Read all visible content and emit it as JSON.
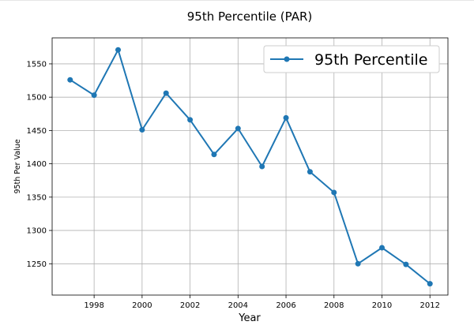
{
  "chart_data": {
    "type": "line",
    "title": "95th Percentile (PAR)",
    "xlabel": "Year",
    "ylabel": "95th Per Value",
    "x": [
      1997,
      1998,
      1999,
      2000,
      2001,
      2002,
      2003,
      2004,
      2005,
      2006,
      2007,
      2008,
      2009,
      2010,
      2011,
      2012
    ],
    "series": [
      {
        "name": "95th Percentile",
        "color": "#1f77b4",
        "marker": "circle",
        "values": [
          1526,
          1503,
          1571,
          1451,
          1506,
          1466,
          1414,
          1453,
          1396,
          1469,
          1388,
          1357,
          1250,
          1274,
          1249,
          1220
        ]
      }
    ],
    "xticks": [
      1998,
      2000,
      2002,
      2004,
      2006,
      2008,
      2010,
      2012
    ],
    "yticks": [
      1250,
      1300,
      1350,
      1400,
      1450,
      1500,
      1550
    ],
    "xlim": [
      1996.25,
      2012.75
    ],
    "ylim": [
      1203,
      1589
    ],
    "grid": true,
    "legend_position": "top-right"
  }
}
